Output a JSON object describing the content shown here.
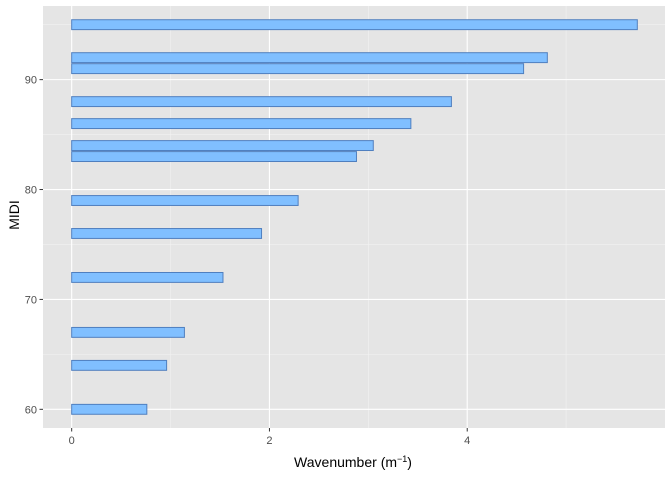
{
  "chart_data": {
    "type": "bar",
    "orientation": "horizontal",
    "xlabel": "Wavenumber",
    "xlabel_unit": "(m",
    "xlabel_unit_exp": "−1",
    "xlabel_unit_close": ")",
    "ylabel": "MIDI",
    "xlim": [
      -0.29,
      6.0
    ],
    "ylim": [
      58.3,
      96.7
    ],
    "x_ticks": [
      0,
      2,
      4
    ],
    "y_ticks": [
      60,
      70,
      80,
      90
    ],
    "grid": true,
    "legend": "none",
    "bar_fill": "#80bfff",
    "bar_stroke": "#4f7fbf",
    "panel_background": "#e5e5e5",
    "bars": [
      {
        "midi": 60,
        "value": 0.76
      },
      {
        "midi": 64,
        "value": 0.96
      },
      {
        "midi": 67,
        "value": 1.14
      },
      {
        "midi": 72,
        "value": 1.53
      },
      {
        "midi": 76,
        "value": 1.92
      },
      {
        "midi": 79,
        "value": 2.29
      },
      {
        "midi": 83,
        "value": 2.88
      },
      {
        "midi": 84,
        "value": 3.05
      },
      {
        "midi": 86,
        "value": 3.43
      },
      {
        "midi": 88,
        "value": 3.84
      },
      {
        "midi": 91,
        "value": 4.57
      },
      {
        "midi": 92,
        "value": 4.81
      },
      {
        "midi": 95,
        "value": 5.72
      }
    ]
  }
}
